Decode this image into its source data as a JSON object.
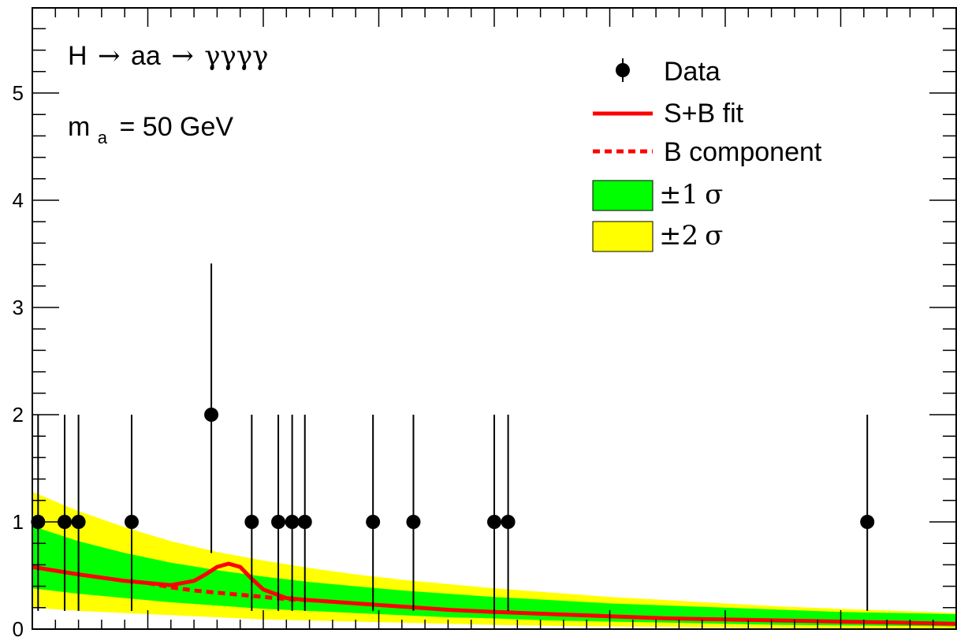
{
  "chart_data": {
    "type": "scatter",
    "title": "",
    "xlabel": "",
    "ylabel": "",
    "xlim": [
      100,
      180
    ],
    "ylim": [
      0,
      5.8
    ],
    "yticks": [
      "0",
      "1",
      "2",
      "3",
      "4",
      "5"
    ],
    "annotations": {
      "process_prefix": "H",
      "process_mid": "aa",
      "process_final": "γγγγ",
      "arrow": "→",
      "mass_symbol": "m",
      "mass_subscript": "a",
      "mass_value": "= 50 GeV"
    },
    "legend": {
      "placement": "top-right",
      "data_label": "Data",
      "fit_label": "S+B fit",
      "bkg_label": "B component",
      "band1_pm": "±1",
      "band1_sigma": "σ",
      "band2_pm": "±2",
      "band2_sigma": "σ"
    },
    "colors": {
      "fit": "#ff0000",
      "band1": "#00ff00",
      "band2": "#ffff00",
      "data": "#000000"
    },
    "data_points": [
      {
        "x": 100.5,
        "y": 1,
        "err_low": 0.83,
        "err_high": 1.0
      },
      {
        "x": 102.8,
        "y": 1,
        "err_low": 0.83,
        "err_high": 1.0
      },
      {
        "x": 104.0,
        "y": 1,
        "err_low": 0.83,
        "err_high": 1.0
      },
      {
        "x": 108.6,
        "y": 1,
        "err_low": 0.83,
        "err_high": 1.0
      },
      {
        "x": 115.5,
        "y": 2,
        "err_low": 1.29,
        "err_high": 1.41
      },
      {
        "x": 119.0,
        "y": 1,
        "err_low": 0.83,
        "err_high": 1.0
      },
      {
        "x": 121.3,
        "y": 1,
        "err_low": 0.83,
        "err_high": 1.0
      },
      {
        "x": 122.5,
        "y": 1,
        "err_low": 0.83,
        "err_high": 1.0
      },
      {
        "x": 123.6,
        "y": 1,
        "err_low": 0.83,
        "err_high": 1.0
      },
      {
        "x": 129.5,
        "y": 1,
        "err_low": 0.83,
        "err_high": 1.0
      },
      {
        "x": 133.0,
        "y": 1,
        "err_low": 0.83,
        "err_high": 1.0
      },
      {
        "x": 140.0,
        "y": 1,
        "err_low": 0.83,
        "err_high": 1.0
      },
      {
        "x": 141.2,
        "y": 1,
        "err_low": 0.83,
        "err_high": 1.0
      },
      {
        "x": 172.3,
        "y": 1,
        "err_low": 0.83,
        "err_high": 1.0
      }
    ],
    "fit_curve": {
      "x": [
        100,
        104,
        108,
        110,
        112,
        114,
        115,
        116,
        117,
        118,
        119,
        120,
        122,
        124,
        128,
        132,
        136,
        140,
        145,
        150,
        155,
        160,
        165,
        170,
        175,
        180
      ],
      "y": [
        0.58,
        0.51,
        0.45,
        0.43,
        0.41,
        0.45,
        0.51,
        0.58,
        0.61,
        0.58,
        0.47,
        0.37,
        0.29,
        0.27,
        0.24,
        0.21,
        0.18,
        0.16,
        0.14,
        0.12,
        0.1,
        0.09,
        0.08,
        0.07,
        0.06,
        0.05
      ]
    },
    "bkg_curve": {
      "x": [
        110,
        112,
        114,
        116,
        118,
        120,
        122,
        124
      ],
      "y": [
        0.43,
        0.39,
        0.36,
        0.34,
        0.32,
        0.3,
        0.28,
        0.27
      ]
    },
    "band_x": [
      100,
      104,
      108,
      112,
      116,
      120,
      124,
      128,
      132,
      136,
      140,
      145,
      150,
      155,
      160,
      165,
      170,
      175,
      180
    ],
    "band1_upper": [
      0.96,
      0.82,
      0.71,
      0.62,
      0.55,
      0.49,
      0.44,
      0.4,
      0.36,
      0.33,
      0.3,
      0.27,
      0.24,
      0.22,
      0.2,
      0.18,
      0.16,
      0.15,
      0.14
    ],
    "band1_lower": [
      0.38,
      0.33,
      0.29,
      0.25,
      0.22,
      0.19,
      0.17,
      0.15,
      0.13,
      0.11,
      0.1,
      0.08,
      0.07,
      0.06,
      0.05,
      0.04,
      0.035,
      0.03,
      0.025
    ],
    "band2_upper": [
      1.28,
      1.1,
      0.95,
      0.82,
      0.72,
      0.64,
      0.57,
      0.51,
      0.46,
      0.42,
      0.38,
      0.34,
      0.3,
      0.27,
      0.24,
      0.21,
      0.19,
      0.17,
      0.15
    ],
    "band2_lower": [
      0.2,
      0.17,
      0.15,
      0.13,
      0.11,
      0.09,
      0.08,
      0.07,
      0.06,
      0.05,
      0.04,
      0.03,
      0.025,
      0.02,
      0.015,
      0.01,
      0.008,
      0.005,
      0.003
    ]
  }
}
